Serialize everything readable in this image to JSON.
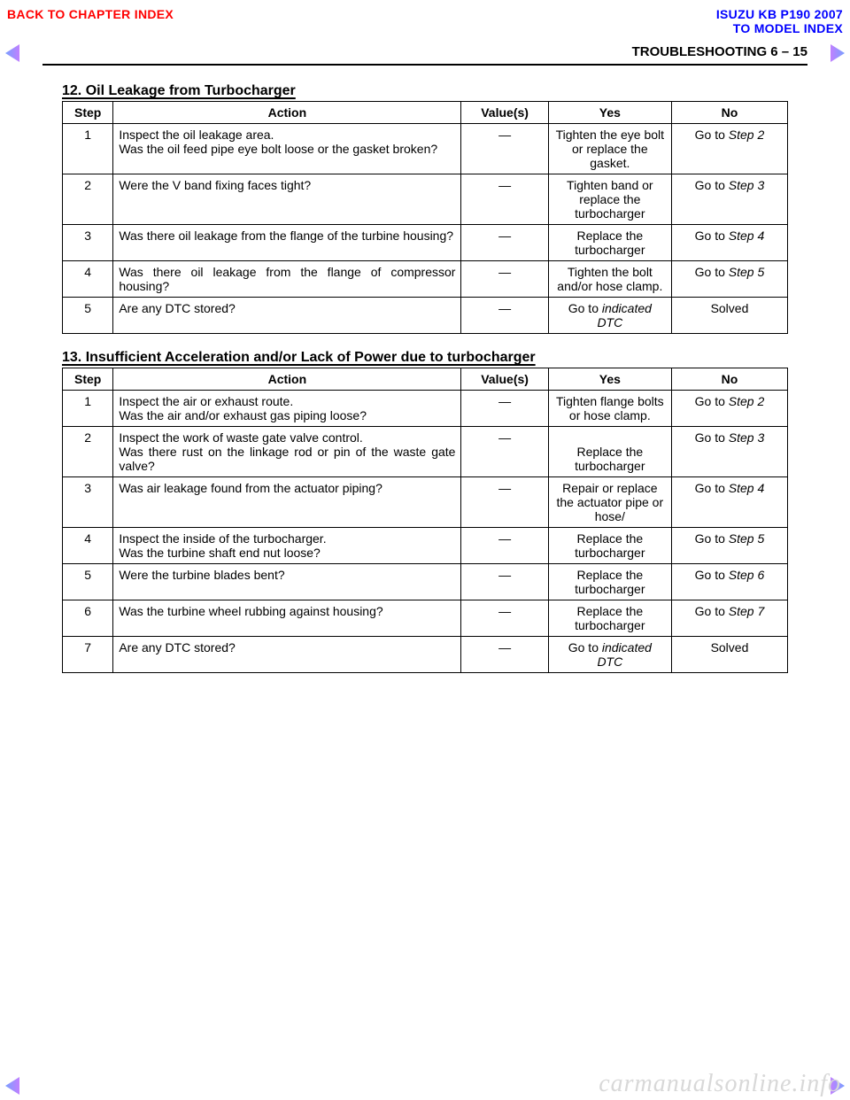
{
  "top": {
    "back_to_chapter": "BACK TO CHAPTER INDEX",
    "isuzu_model": "ISUZU KB P190 2007",
    "to_model_index": "TO MODEL INDEX"
  },
  "header": {
    "title": "TROUBLESHOOTING  6 – 15"
  },
  "section12": {
    "heading": "12. Oil Leakage from Turbocharger",
    "columns": {
      "step": "Step",
      "action": "Action",
      "values": "Value(s)",
      "yes": "Yes",
      "no": "No"
    },
    "rows": [
      {
        "step": "1",
        "action_line1": "Inspect the oil leakage area.",
        "action_line2": "Was the oil feed pipe eye bolt loose or the gasket broken?",
        "values": "—",
        "yes": "Tighten the eye bolt or replace the gasket.",
        "no_prefix": "Go to ",
        "no_step": "Step 2"
      },
      {
        "step": "2",
        "action_line1": "Were the V band fixing faces tight?",
        "action_line2": "",
        "values": "—",
        "yes": "Tighten band or replace the turbocharger",
        "no_prefix": "Go to ",
        "no_step": "Step 3"
      },
      {
        "step": "3",
        "action_line1": "Was there oil leakage from the flange of the turbine housing?",
        "action_line2": "",
        "values": "—",
        "yes": "Replace the turbocharger",
        "no_prefix": "Go to ",
        "no_step": "Step 4"
      },
      {
        "step": "4",
        "action_line1": "Was there oil leakage from the flange of compressor housing?",
        "action_line2": "",
        "values": "—",
        "yes": "Tighten the bolt and/or hose clamp.",
        "no_prefix": "Go to ",
        "no_step": "Step 5"
      },
      {
        "step": "5",
        "action_line1": "Are any DTC stored?",
        "action_line2": "",
        "values": "—",
        "yes_prefix": "Go to ",
        "yes_italic": "indicated DTC",
        "no_prefix": "",
        "no_step": "Solved"
      }
    ]
  },
  "section13": {
    "heading": "13. Insufficient Acceleration and/or Lack of Power due to turbocharger",
    "columns": {
      "step": "Step",
      "action": "Action",
      "values": "Value(s)",
      "yes": "Yes",
      "no": "No"
    },
    "rows": [
      {
        "step": "1",
        "action_line1": "Inspect the air or exhaust route.",
        "action_line2": "Was the air and/or exhaust gas piping loose?",
        "values": "—",
        "yes": "Tighten flange bolts or hose clamp.",
        "no_prefix": "Go to ",
        "no_step": "Step 2"
      },
      {
        "step": "2",
        "action_line1": "Inspect the work of waste gate valve control.",
        "action_line2": "Was there rust on the linkage rod or pin of the waste gate valve?",
        "values": "—",
        "yes": "Replace the turbocharger",
        "no_prefix": "Go to ",
        "no_step": "Step 3"
      },
      {
        "step": "3",
        "action_line1": "Was air leakage found from the actuator piping?",
        "action_line2": "",
        "values": "—",
        "yes": "Repair or replace the actuator pipe or hose/",
        "no_prefix": "Go to ",
        "no_step": "Step 4"
      },
      {
        "step": "4",
        "action_line1": "Inspect the inside of the turbocharger.",
        "action_line2": "Was the turbine shaft end nut loose?",
        "values": "—",
        "yes": "Replace the turbocharger",
        "no_prefix": "Go to ",
        "no_step": "Step 5"
      },
      {
        "step": "5",
        "action_line1": "Were the turbine blades bent?",
        "action_line2": "",
        "values": "—",
        "yes": "Replace the turbocharger",
        "no_prefix": "Go to ",
        "no_step": "Step 6"
      },
      {
        "step": "6",
        "action_line1": "Was the turbine wheel rubbing against housing?",
        "action_line2": "",
        "values": "—",
        "yes": "Replace the turbocharger",
        "no_prefix": "Go to ",
        "no_step": "Step 7"
      },
      {
        "step": "7",
        "action_line1": "Are any DTC stored?",
        "action_line2": "",
        "values": "—",
        "yes_prefix": "Go to ",
        "yes_italic": "indicated DTC",
        "no_prefix": "",
        "no_step": "Solved"
      }
    ]
  },
  "watermark": "carmanualsonline.info"
}
